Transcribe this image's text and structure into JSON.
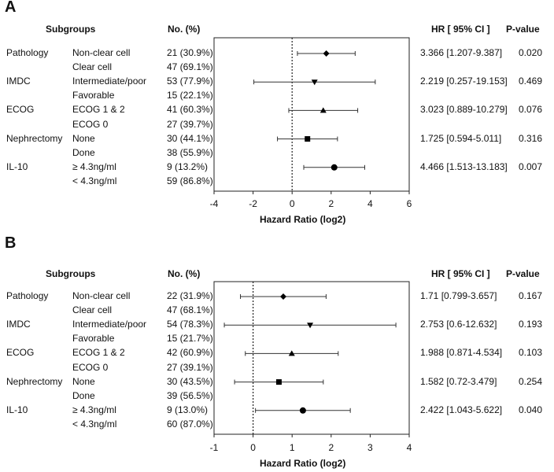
{
  "panels": [
    {
      "label": "A",
      "headers": {
        "subgroups": "Subgroups",
        "no": "No. (%)",
        "hr": "HR [ 95% CI ]",
        "p": "P-value"
      },
      "xlabel": "Hazard Ratio (log2)",
      "xlim": [
        -4,
        6
      ],
      "ticks": [
        "-4",
        "-2",
        "0",
        "2",
        "4",
        "6"
      ],
      "rows": [
        {
          "group": "Pathology",
          "sub": "Non-clear cell",
          "no": "21 (30.9%)",
          "hr": "3.366 [1.207-9.387]",
          "p": "0.020"
        },
        {
          "group": "",
          "sub": "Clear cell",
          "no": "47 (69.1%)",
          "hr": "",
          "p": ""
        },
        {
          "group": "IMDC",
          "sub": "Intermediate/poor",
          "no": "53 (77.9%)",
          "hr": "2.219 [0.257-19.153]",
          "p": "0.469"
        },
        {
          "group": "",
          "sub": "Favorable",
          "no": "15 (22.1%)",
          "hr": "",
          "p": ""
        },
        {
          "group": "ECOG",
          "sub": "ECOG 1 & 2",
          "no": "41 (60.3%)",
          "hr": "3.023 [0.889-10.279]",
          "p": "0.076"
        },
        {
          "group": "",
          "sub": "ECOG 0",
          "no": "27 (39.7%)",
          "hr": "",
          "p": ""
        },
        {
          "group": "Nephrectomy",
          "sub": "None",
          "no": "30 (44.1%)",
          "hr": "1.725 [0.594-5.011]",
          "p": "0.316"
        },
        {
          "group": "",
          "sub": "Done",
          "no": "38 (55.9%)",
          "hr": "",
          "p": ""
        },
        {
          "group": "IL-10",
          "sub": "≥ 4.3ng/ml",
          "no": "9 (13.2%)",
          "hr": "4.466 [1.513-13.183]",
          "p": "0.007"
        },
        {
          "group": "",
          "sub": "< 4.3ng/ml",
          "no": "59 (86.8%)",
          "hr": "",
          "p": ""
        }
      ]
    },
    {
      "label": "B",
      "headers": {
        "subgroups": "Subgroups",
        "no": "No. (%)",
        "hr": "HR [ 95% CI ]",
        "p": "P-value"
      },
      "xlabel": "Hazard Ratio (log2)",
      "xlim": [
        -1,
        4
      ],
      "ticks": [
        "-1",
        "0",
        "1",
        "2",
        "3",
        "4"
      ],
      "rows": [
        {
          "group": "Pathology",
          "sub": "Non-clear cell",
          "no": "22 (31.9%)",
          "hr": "1.71 [0.799-3.657]",
          "p": "0.167"
        },
        {
          "group": "",
          "sub": "Clear cell",
          "no": "47 (68.1%)",
          "hr": "",
          "p": ""
        },
        {
          "group": "IMDC",
          "sub": "Intermediate/poor",
          "no": "54 (78.3%)",
          "hr": "2.753 [0.6-12.632]",
          "p": "0.193"
        },
        {
          "group": "",
          "sub": "Favorable",
          "no": "15 (21.7%)",
          "hr": "",
          "p": ""
        },
        {
          "group": "ECOG",
          "sub": "ECOG 1 & 2",
          "no": "42 (60.9%)",
          "hr": "1.988 [0.871-4.534]",
          "p": "0.103"
        },
        {
          "group": "",
          "sub": "ECOG 0",
          "no": "27 (39.1%)",
          "hr": "",
          "p": ""
        },
        {
          "group": "Nephrectomy",
          "sub": "None",
          "no": "30 (43.5%)",
          "hr": "1.582 [0.72-3.479]",
          "p": "0.254"
        },
        {
          "group": "",
          "sub": "Done",
          "no": "39 (56.5%)",
          "hr": "",
          "p": ""
        },
        {
          "group": "IL-10",
          "sub": "≥ 4.3ng/ml",
          "no": "9 (13.0%)",
          "hr": "2.422 [1.043-5.622]",
          "p": "0.040"
        },
        {
          "group": "",
          "sub": "< 4.3ng/ml",
          "no": "60 (87.0%)",
          "hr": "",
          "p": ""
        }
      ]
    }
  ],
  "chart_data": [
    {
      "type": "forest",
      "title": "A",
      "xlabel": "Hazard Ratio (log2)",
      "xlim": [
        -4,
        6
      ],
      "reference_line": 0,
      "series": [
        {
          "name": "Pathology: Non-clear cell",
          "marker": "diamond",
          "log2_hr": 1.751,
          "log2_lower": 0.271,
          "log2_upper": 3.231
        },
        {
          "name": "IMDC: Intermediate/poor",
          "marker": "triangle-down",
          "log2_hr": 1.15,
          "log2_lower": -1.961,
          "log2_upper": 4.26
        },
        {
          "name": "ECOG: ECOG 1 & 2",
          "marker": "triangle-up",
          "log2_hr": 1.596,
          "log2_lower": -0.17,
          "log2_upper": 3.362
        },
        {
          "name": "Nephrectomy: None",
          "marker": "square",
          "log2_hr": 0.787,
          "log2_lower": -0.751,
          "log2_upper": 2.325
        },
        {
          "name": "IL-10: ≥ 4.3ng/ml",
          "marker": "circle",
          "log2_hr": 2.159,
          "log2_lower": 0.597,
          "log2_upper": 3.721
        }
      ]
    },
    {
      "type": "forest",
      "title": "B",
      "xlabel": "Hazard Ratio (log2)",
      "xlim": [
        -1,
        4
      ],
      "reference_line": 0,
      "series": [
        {
          "name": "Pathology: Non-clear cell",
          "marker": "diamond",
          "log2_hr": 0.774,
          "log2_lower": -0.324,
          "log2_upper": 1.871
        },
        {
          "name": "IMDC: Intermediate/poor",
          "marker": "triangle-down",
          "log2_hr": 1.461,
          "log2_lower": -0.737,
          "log2_upper": 3.659
        },
        {
          "name": "ECOG: ECOG 1 & 2",
          "marker": "triangle-up",
          "log2_hr": 0.991,
          "log2_lower": -0.199,
          "log2_upper": 2.181
        },
        {
          "name": "Nephrectomy: None",
          "marker": "square",
          "log2_hr": 0.662,
          "log2_lower": -0.474,
          "log2_upper": 1.799
        },
        {
          "name": "IL-10: ≥ 4.3ng/ml",
          "marker": "circle",
          "log2_hr": 1.276,
          "log2_lower": 0.061,
          "log2_upper": 2.491
        }
      ]
    }
  ]
}
